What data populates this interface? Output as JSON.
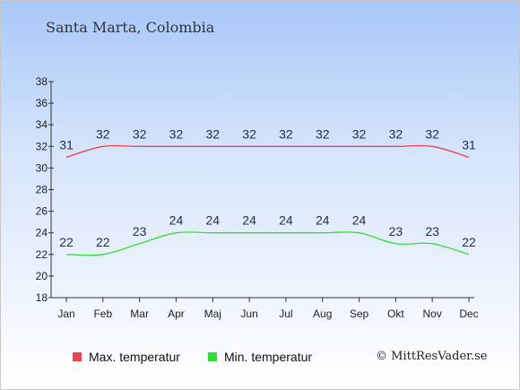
{
  "location_title": "Santa Marta, Colombia",
  "credit": "© MittResVader.se",
  "chart_data": {
    "type": "line",
    "categories": [
      "Jan",
      "Feb",
      "Mar",
      "Apr",
      "Maj",
      "Jun",
      "Jul",
      "Aug",
      "Sep",
      "Okt",
      "Nov",
      "Dec"
    ],
    "ylim": [
      18,
      38
    ],
    "yticks": [
      18,
      20,
      22,
      24,
      26,
      28,
      30,
      32,
      34,
      36,
      38
    ],
    "grid": false,
    "legend_placement": "bottom-left",
    "series": [
      {
        "name": "Max. temperatur",
        "color": "#e8444f",
        "values": [
          31,
          32,
          32,
          32,
          32,
          32,
          32,
          32,
          32,
          32,
          32,
          31
        ]
      },
      {
        "name": "Min. temperatur",
        "color": "#33dd33",
        "values": [
          22,
          22,
          23,
          24,
          24,
          24,
          24,
          24,
          24,
          23,
          23,
          22
        ]
      }
    ]
  }
}
